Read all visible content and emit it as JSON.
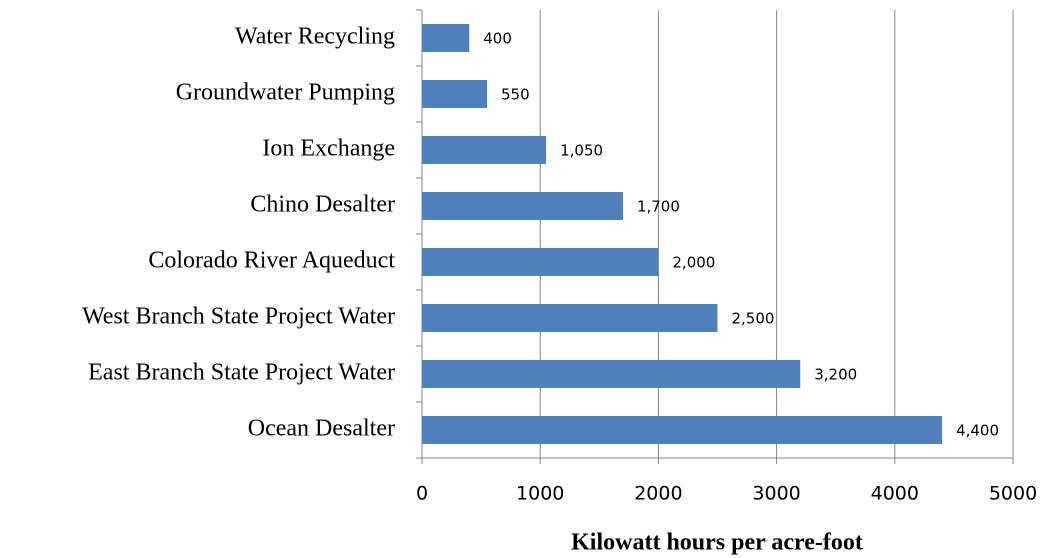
{
  "chart_data": {
    "type": "bar",
    "orientation": "horizontal",
    "x_label": "Kilowatt hours per acre-foot",
    "categories": [
      "Water Recycling",
      "Groundwater Pumping",
      "Ion Exchange",
      "Chino Desalter",
      "Colorado River Aqueduct",
      "West Branch State Project Water",
      "East Branch State Project Water",
      "Ocean Desalter"
    ],
    "values": [
      400,
      550,
      1050,
      1700,
      2000,
      2500,
      3200,
      4400
    ],
    "value_labels": [
      "400",
      "550",
      "1,050",
      "1,700",
      "2,000",
      "2,500",
      "3,200",
      "4,400"
    ],
    "color": "#4f81bd",
    "xlim": [
      0,
      5000
    ],
    "xticks": [
      0,
      1000,
      2000,
      3000,
      4000,
      5000
    ],
    "grid": true
  }
}
